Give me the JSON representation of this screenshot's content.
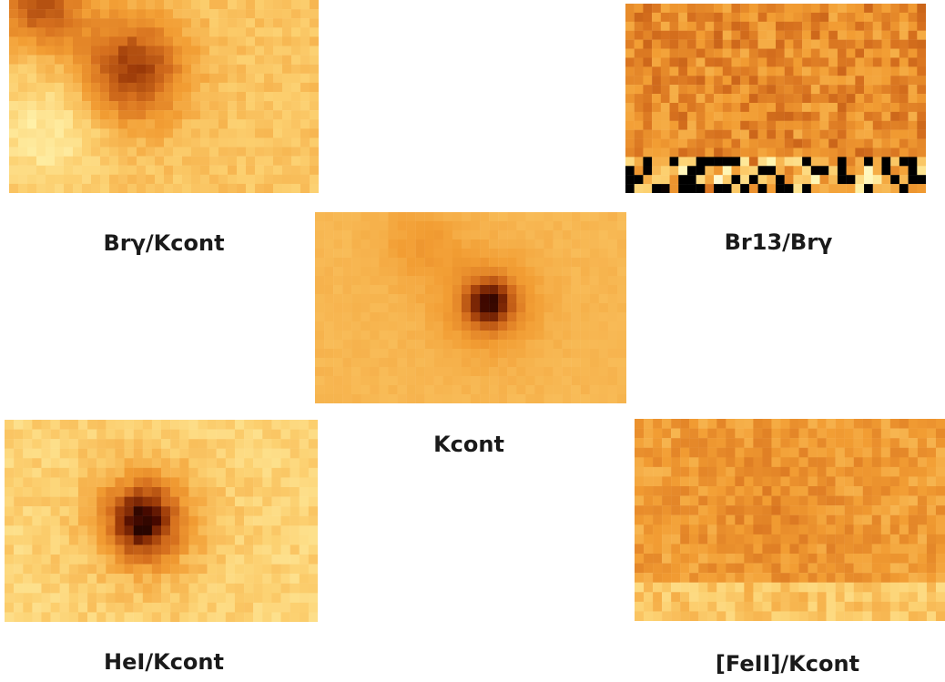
{
  "figure": {
    "panels": [
      {
        "id": "brg",
        "label": "Brγ/Kcont"
      },
      {
        "id": "br13",
        "label": "Br13/Brγ"
      },
      {
        "id": "kcont",
        "label": "Kcont"
      },
      {
        "id": "hei",
        "label": "HeI/Kcont"
      },
      {
        "id": "feii",
        "label": "[FeII]/Kcont"
      }
    ],
    "colormap": [
      "#ffffff",
      "#fff5b0",
      "#fcd070",
      "#f29d33",
      "#d6701e",
      "#9c3a08",
      "#4a0a00",
      "#000000"
    ]
  }
}
